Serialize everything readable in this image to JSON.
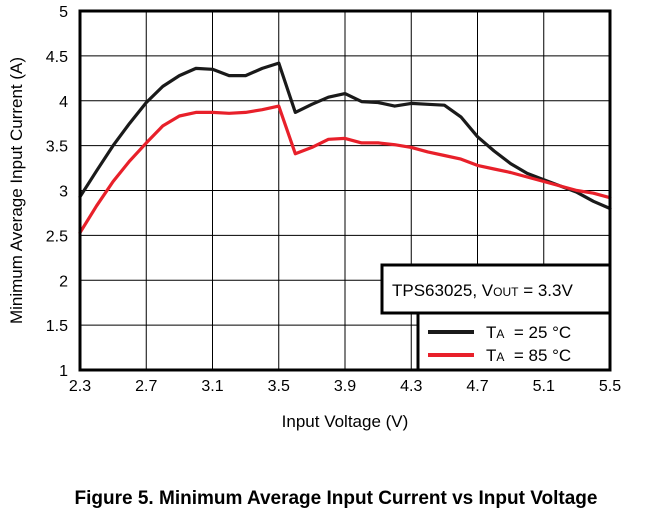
{
  "chart_data": {
    "type": "line",
    "xlabel": "Input Voltage (V)",
    "ylabel": "Minimum  Average Input Current  (A)",
    "xlim": [
      2.3,
      5.5
    ],
    "ylim": [
      1,
      5
    ],
    "x_ticks": [
      "2.3",
      "2.7",
      "3.1",
      "3.5",
      "3.9",
      "4.3",
      "4.7",
      "5.1",
      "5.5"
    ],
    "y_ticks": [
      "1",
      "1.5",
      "2",
      "2.5",
      "3",
      "3.5",
      "4",
      "4.5",
      "5"
    ],
    "grid": true,
    "annotation": {
      "device": "TPS63025, V",
      "sub": "OUT",
      "rest": " = 3.3V"
    },
    "legend_placement": "bottom-right",
    "series": [
      {
        "name_main": "T",
        "name_sub": "A",
        "name_rest": "  = 25 °C",
        "color": "#1a1a1a",
        "x": [
          2.3,
          2.4,
          2.5,
          2.6,
          2.7,
          2.8,
          2.9,
          3.0,
          3.1,
          3.2,
          3.3,
          3.4,
          3.5,
          3.6,
          3.7,
          3.8,
          3.9,
          4.0,
          4.1,
          4.2,
          4.3,
          4.4,
          4.5,
          4.6,
          4.7,
          4.8,
          4.9,
          5.0,
          5.1,
          5.2,
          5.3,
          5.4,
          5.5
        ],
        "y": [
          2.93,
          3.22,
          3.5,
          3.75,
          3.98,
          4.16,
          4.28,
          4.36,
          4.35,
          4.28,
          4.28,
          4.36,
          4.42,
          3.87,
          3.96,
          4.04,
          4.08,
          3.99,
          3.98,
          3.94,
          3.97,
          3.96,
          3.95,
          3.82,
          3.6,
          3.44,
          3.3,
          3.19,
          3.12,
          3.05,
          2.98,
          2.88,
          2.8
        ]
      },
      {
        "name_main": "T",
        "name_sub": "A",
        "name_rest": "  = 85 °C",
        "color": "#e8202a",
        "x": [
          2.3,
          2.4,
          2.5,
          2.6,
          2.7,
          2.8,
          2.9,
          3.0,
          3.1,
          3.2,
          3.3,
          3.4,
          3.5,
          3.6,
          3.7,
          3.8,
          3.9,
          4.0,
          4.1,
          4.2,
          4.3,
          4.4,
          4.5,
          4.6,
          4.7,
          4.8,
          4.9,
          5.0,
          5.1,
          5.2,
          5.3,
          5.4,
          5.5
        ],
        "y": [
          2.53,
          2.83,
          3.1,
          3.33,
          3.53,
          3.72,
          3.83,
          3.87,
          3.87,
          3.86,
          3.87,
          3.9,
          3.94,
          3.41,
          3.48,
          3.57,
          3.58,
          3.53,
          3.53,
          3.51,
          3.48,
          3.43,
          3.39,
          3.35,
          3.28,
          3.24,
          3.2,
          3.15,
          3.1,
          3.05,
          3.0,
          2.97,
          2.92
        ]
      }
    ]
  },
  "figure": {
    "caption": "Figure 5. Minimum Average Input Current vs Input Voltage"
  }
}
